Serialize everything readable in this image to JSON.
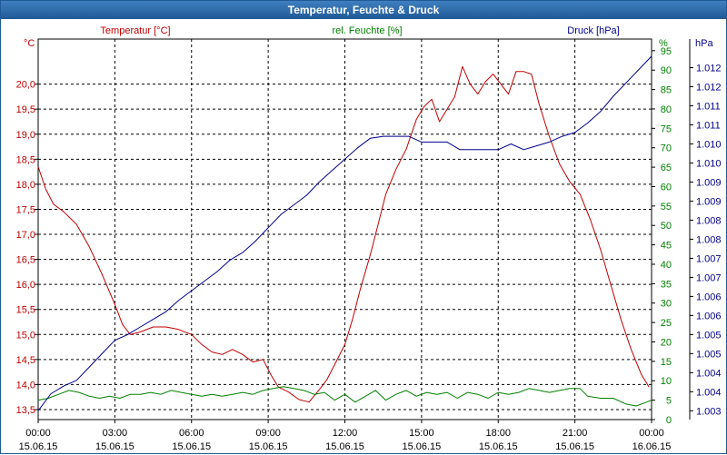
{
  "window": {
    "title": "Temperatur, Feuchte & Druck"
  },
  "colors": {
    "temperature": "#c00000",
    "humidity": "#008000",
    "pressure": "#00008b",
    "axis_text": "#000000",
    "title_bar": "#1f5a96"
  },
  "chart_data": {
    "type": "line",
    "title": "Temperatur, Feuchte & Druck",
    "legend": [
      "Temperatur [°C]",
      "rel. Feuchte [%]",
      "Druck [hPa]"
    ],
    "grid": true,
    "x_ticks": [
      {
        "time": "00:00",
        "date": "15.06.15"
      },
      {
        "time": "03:00",
        "date": "15.06.15"
      },
      {
        "time": "06:00",
        "date": "15.06.15"
      },
      {
        "time": "09:00",
        "date": "15.06.15"
      },
      {
        "time": "12:00",
        "date": "15.06.15"
      },
      {
        "time": "15:00",
        "date": "15.06.15"
      },
      {
        "time": "18:00",
        "date": "15.06.15"
      },
      {
        "time": "21:00",
        "date": "15.06.15"
      },
      {
        "time": "00:00",
        "date": "16.06.15"
      }
    ],
    "xlim": [
      0,
      24
    ],
    "axes": {
      "temperature": {
        "unit": "°C",
        "label": "Temperatur [°C]",
        "ylim": [
          13.3,
          20.9
        ],
        "ticks": [
          "13,5",
          "14,0",
          "14,5",
          "15,0",
          "15,5",
          "16,0",
          "16,5",
          "17,0",
          "17,5",
          "18,0",
          "18,5",
          "19,0",
          "19,5",
          "20,0"
        ]
      },
      "humidity": {
        "unit": "%",
        "label": "rel. Feuchte [%]",
        "ylim": [
          0,
          98
        ],
        "ticks": [
          "0",
          "5",
          "10",
          "15",
          "20",
          "25",
          "30",
          "35",
          "40",
          "45",
          "50",
          "55",
          "60",
          "65",
          "70",
          "75",
          "80",
          "85",
          "90",
          "95"
        ]
      },
      "pressure": {
        "unit": "hPa",
        "label": "Druck [hPa]",
        "ylim": [
          1002.57,
          1012.55
        ],
        "ticks": [
          "1.003",
          "1.004",
          "1.004",
          "1.005",
          "1.005",
          "1.006",
          "1.006",
          "1.007",
          "1.007",
          "1.008",
          "1.008",
          "1.009",
          "1.009",
          "1.010",
          "1.010",
          "1.011",
          "1.011",
          "1.012",
          "1.012"
        ]
      }
    },
    "series": [
      {
        "name": "Temperatur",
        "axis": "temperature",
        "points": [
          [
            0,
            18.35
          ],
          [
            0.3,
            17.9
          ],
          [
            0.6,
            17.6
          ],
          [
            1,
            17.45
          ],
          [
            1.5,
            17.2
          ],
          [
            2,
            16.75
          ],
          [
            2.5,
            16.2
          ],
          [
            3,
            15.6
          ],
          [
            3.3,
            15.2
          ],
          [
            3.6,
            15.0
          ],
          [
            4,
            15.05
          ],
          [
            4.5,
            15.15
          ],
          [
            5,
            15.15
          ],
          [
            5.5,
            15.1
          ],
          [
            6,
            15.0
          ],
          [
            6.4,
            14.8
          ],
          [
            6.8,
            14.65
          ],
          [
            7.2,
            14.6
          ],
          [
            7.6,
            14.7
          ],
          [
            8,
            14.6
          ],
          [
            8.4,
            14.45
          ],
          [
            8.8,
            14.5
          ],
          [
            9.1,
            14.2
          ],
          [
            9.4,
            13.95
          ],
          [
            9.8,
            13.85
          ],
          [
            10.2,
            13.7
          ],
          [
            10.6,
            13.65
          ],
          [
            11,
            13.9
          ],
          [
            11.3,
            14.1
          ],
          [
            11.6,
            14.4
          ],
          [
            12,
            14.8
          ],
          [
            12.3,
            15.3
          ],
          [
            12.6,
            15.9
          ],
          [
            13,
            16.6
          ],
          [
            13.3,
            17.2
          ],
          [
            13.6,
            17.8
          ],
          [
            14,
            18.3
          ],
          [
            14.4,
            18.7
          ],
          [
            14.8,
            19.3
          ],
          [
            15.1,
            19.55
          ],
          [
            15.4,
            19.7
          ],
          [
            15.7,
            19.25
          ],
          [
            16,
            19.5
          ],
          [
            16.3,
            19.75
          ],
          [
            16.6,
            20.35
          ],
          [
            16.9,
            20.0
          ],
          [
            17.2,
            19.8
          ],
          [
            17.5,
            20.05
          ],
          [
            17.8,
            20.2
          ],
          [
            18.1,
            20.0
          ],
          [
            18.4,
            19.8
          ],
          [
            18.7,
            20.25
          ],
          [
            19,
            20.25
          ],
          [
            19.3,
            20.2
          ],
          [
            19.6,
            19.6
          ],
          [
            20,
            18.95
          ],
          [
            20.4,
            18.4
          ],
          [
            20.8,
            18.05
          ],
          [
            21.2,
            17.8
          ],
          [
            21.6,
            17.3
          ],
          [
            22,
            16.7
          ],
          [
            22.4,
            16.0
          ],
          [
            22.8,
            15.3
          ],
          [
            23.2,
            14.7
          ],
          [
            23.6,
            14.2
          ],
          [
            23.9,
            13.95
          ]
        ]
      },
      {
        "name": "rel. Feuchte",
        "axis": "humidity",
        "points": [
          [
            0,
            5.0
          ],
          [
            0.4,
            5.5
          ],
          [
            0.8,
            6.5
          ],
          [
            1.2,
            7.5
          ],
          [
            1.6,
            7.0
          ],
          [
            2,
            6.0
          ],
          [
            2.4,
            5.5
          ],
          [
            2.8,
            6.0
          ],
          [
            3.2,
            5.5
          ],
          [
            3.6,
            6.5
          ],
          [
            4,
            6.5
          ],
          [
            4.4,
            7.0
          ],
          [
            4.8,
            6.5
          ],
          [
            5.2,
            7.5
          ],
          [
            5.6,
            7.0
          ],
          [
            6,
            6.5
          ],
          [
            6.4,
            6.0
          ],
          [
            6.8,
            6.5
          ],
          [
            7.2,
            6.0
          ],
          [
            7.6,
            6.5
          ],
          [
            8,
            7.0
          ],
          [
            8.4,
            6.5
          ],
          [
            8.8,
            7.5
          ],
          [
            9.2,
            8.0
          ],
          [
            9.6,
            8.5
          ],
          [
            10,
            8.0
          ],
          [
            10.4,
            7.5
          ],
          [
            10.8,
            6.5
          ],
          [
            11.2,
            7.0
          ],
          [
            11.6,
            5.0
          ],
          [
            12,
            6.5
          ],
          [
            12.4,
            4.5
          ],
          [
            12.8,
            6.0
          ],
          [
            13.2,
            7.5
          ],
          [
            13.6,
            5.0
          ],
          [
            14,
            6.5
          ],
          [
            14.4,
            7.5
          ],
          [
            14.8,
            6.0
          ],
          [
            15.2,
            7.0
          ],
          [
            15.6,
            6.5
          ],
          [
            16,
            7.0
          ],
          [
            16.4,
            5.5
          ],
          [
            16.8,
            7.0
          ],
          [
            17.2,
            6.5
          ],
          [
            17.6,
            5.5
          ],
          [
            18,
            7.0
          ],
          [
            18.4,
            6.5
          ],
          [
            18.8,
            7.0
          ],
          [
            19.2,
            8.0
          ],
          [
            19.6,
            7.5
          ],
          [
            20,
            7.0
          ],
          [
            20.4,
            7.5
          ],
          [
            20.8,
            8.0
          ],
          [
            21.2,
            8.0
          ],
          [
            21.5,
            6.0
          ],
          [
            22,
            5.5
          ],
          [
            22.5,
            5.5
          ],
          [
            23,
            4.0
          ],
          [
            23.4,
            3.5
          ],
          [
            23.8,
            4.5
          ],
          [
            24,
            5.0
          ]
        ]
      },
      {
        "name": "Druck",
        "axis": "pressure",
        "points": [
          [
            0,
            1002.8
          ],
          [
            0.5,
            1003.25
          ],
          [
            1,
            1003.45
          ],
          [
            1.5,
            1003.6
          ],
          [
            2,
            1003.95
          ],
          [
            2.5,
            1004.3
          ],
          [
            3,
            1004.65
          ],
          [
            3.5,
            1004.8
          ],
          [
            4,
            1005.0
          ],
          [
            4.5,
            1005.2
          ],
          [
            5,
            1005.4
          ],
          [
            5.5,
            1005.7
          ],
          [
            6,
            1005.95
          ],
          [
            6.5,
            1006.2
          ],
          [
            7,
            1006.45
          ],
          [
            7.5,
            1006.75
          ],
          [
            8,
            1006.95
          ],
          [
            8.5,
            1007.25
          ],
          [
            9,
            1007.6
          ],
          [
            9.5,
            1007.95
          ],
          [
            10,
            1008.2
          ],
          [
            10.5,
            1008.45
          ],
          [
            11,
            1008.8
          ],
          [
            11.5,
            1009.1
          ],
          [
            12,
            1009.4
          ],
          [
            12.5,
            1009.7
          ],
          [
            13,
            1009.95
          ],
          [
            13.5,
            1010.0
          ],
          [
            14,
            1010.0
          ],
          [
            14.5,
            1010.0
          ],
          [
            15,
            1009.85
          ],
          [
            15.5,
            1009.85
          ],
          [
            16,
            1009.85
          ],
          [
            16.5,
            1009.65
          ],
          [
            17,
            1009.65
          ],
          [
            17.5,
            1009.65
          ],
          [
            18,
            1009.65
          ],
          [
            18.5,
            1009.8
          ],
          [
            19,
            1009.65
          ],
          [
            19.5,
            1009.75
          ],
          [
            20,
            1009.85
          ],
          [
            20.5,
            1010.0
          ],
          [
            21,
            1010.1
          ],
          [
            21.5,
            1010.35
          ],
          [
            22,
            1010.65
          ],
          [
            22.5,
            1011.05
          ],
          [
            23,
            1011.4
          ],
          [
            23.5,
            1011.75
          ],
          [
            24,
            1012.1
          ]
        ]
      }
    ]
  }
}
